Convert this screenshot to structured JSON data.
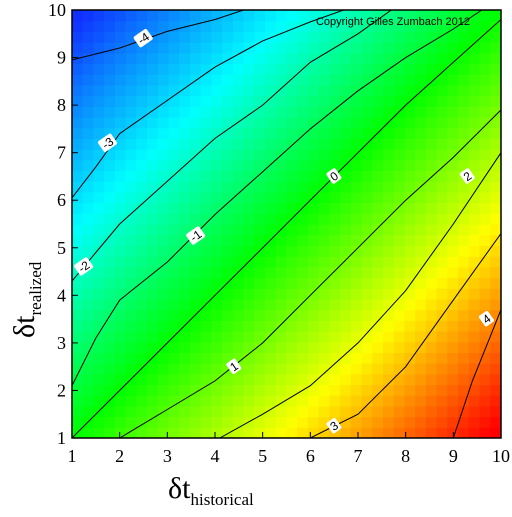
{
  "chart_data": {
    "type": "heatmap",
    "xlabel": {
      "symbol": "δt",
      "subscript": "historical"
    },
    "ylabel": {
      "symbol": "δt",
      "subscript": "realized"
    },
    "xlim": [
      1,
      10
    ],
    "ylim": [
      1,
      10
    ],
    "x_ticks": [
      1,
      2,
      3,
      4,
      5,
      6,
      7,
      8,
      9,
      10
    ],
    "y_ticks": [
      1,
      2,
      3,
      4,
      5,
      6,
      7,
      8,
      9,
      10
    ],
    "grid": false,
    "colorscale": [
      "#1030ff",
      "#00ffff",
      "#00ff00",
      "#ffff00",
      "#ff0000"
    ],
    "value_range": [
      -4.6,
      4.6
    ],
    "annotation": "Copyright Gilles Zumbach 2012",
    "contours": [
      {
        "level": -4,
        "label": "-4",
        "label_at": [
          2.5,
          9.4
        ],
        "points": [
          [
            1,
            8.95
          ],
          [
            2,
            9.2
          ],
          [
            3,
            9.55
          ],
          [
            4,
            9.8
          ],
          [
            4.6,
            10
          ]
        ]
      },
      {
        "level": -3,
        "label": "-3",
        "label_at": [
          1.75,
          7.2
        ],
        "points": [
          [
            1,
            6.05
          ],
          [
            1.5,
            6.7
          ],
          [
            2,
            7.4
          ],
          [
            3,
            8.1
          ],
          [
            4,
            8.8
          ],
          [
            5,
            9.35
          ],
          [
            6,
            9.75
          ],
          [
            6.7,
            10
          ]
        ]
      },
      {
        "level": -2,
        "label": "-2",
        "label_at": [
          1.25,
          4.6
        ],
        "points": [
          [
            1,
            4.3
          ],
          [
            1.5,
            4.9
          ],
          [
            2,
            5.5
          ],
          [
            3,
            6.4
          ],
          [
            4,
            7.3
          ],
          [
            5,
            8.0
          ],
          [
            6,
            8.9
          ],
          [
            7,
            9.5
          ],
          [
            7.7,
            10
          ]
        ]
      },
      {
        "level": -1,
        "label": "-1",
        "label_at": [
          3.6,
          5.25
        ],
        "points": [
          [
            1,
            2.1
          ],
          [
            1.5,
            3.1
          ],
          [
            2,
            3.9
          ],
          [
            3,
            4.7
          ],
          [
            4,
            5.7
          ],
          [
            5,
            6.6
          ],
          [
            6,
            7.5
          ],
          [
            7,
            8.3
          ],
          [
            8,
            9.0
          ],
          [
            9,
            9.6
          ],
          [
            9.6,
            10
          ]
        ]
      },
      {
        "level": 0,
        "label": "0",
        "label_at": [
          6.5,
          6.5
        ],
        "points": [
          [
            1,
            1
          ],
          [
            2,
            2.0
          ],
          [
            3,
            3.0
          ],
          [
            4,
            4.0
          ],
          [
            5,
            5.0
          ],
          [
            6,
            6.0
          ],
          [
            7,
            7.0
          ],
          [
            8,
            8.0
          ],
          [
            9,
            8.9
          ],
          [
            10,
            9.8
          ]
        ]
      },
      {
        "level": 1,
        "label": "1",
        "label_at": [
          4.4,
          2.5
        ],
        "points": [
          [
            2.0,
            1
          ],
          [
            3,
            1.6
          ],
          [
            4,
            2.2
          ],
          [
            5,
            3.0
          ],
          [
            6,
            4.0
          ],
          [
            7,
            5.0
          ],
          [
            8,
            6.0
          ],
          [
            9,
            6.9
          ],
          [
            10,
            7.9
          ]
        ]
      },
      {
        "level": 2,
        "label": "2",
        "label_at": [
          9.3,
          6.5
        ],
        "points": [
          [
            4.1,
            1
          ],
          [
            5,
            1.5
          ],
          [
            6,
            2.1
          ],
          [
            7,
            3.0
          ],
          [
            8,
            4.1
          ],
          [
            9,
            5.5
          ],
          [
            10,
            7.0
          ]
        ]
      },
      {
        "level": 3,
        "label": "3",
        "label_at": [
          6.5,
          1.25
        ],
        "points": [
          [
            6.0,
            1
          ],
          [
            7,
            1.5
          ],
          [
            8,
            2.5
          ],
          [
            9,
            3.9
          ],
          [
            10,
            5.3
          ]
        ]
      },
      {
        "level": 4,
        "label": "4",
        "label_at": [
          9.7,
          3.5
        ],
        "points": [
          [
            9.0,
            1
          ],
          [
            9.4,
            2.2
          ],
          [
            9.8,
            3.2
          ],
          [
            10,
            3.7
          ]
        ]
      }
    ]
  }
}
